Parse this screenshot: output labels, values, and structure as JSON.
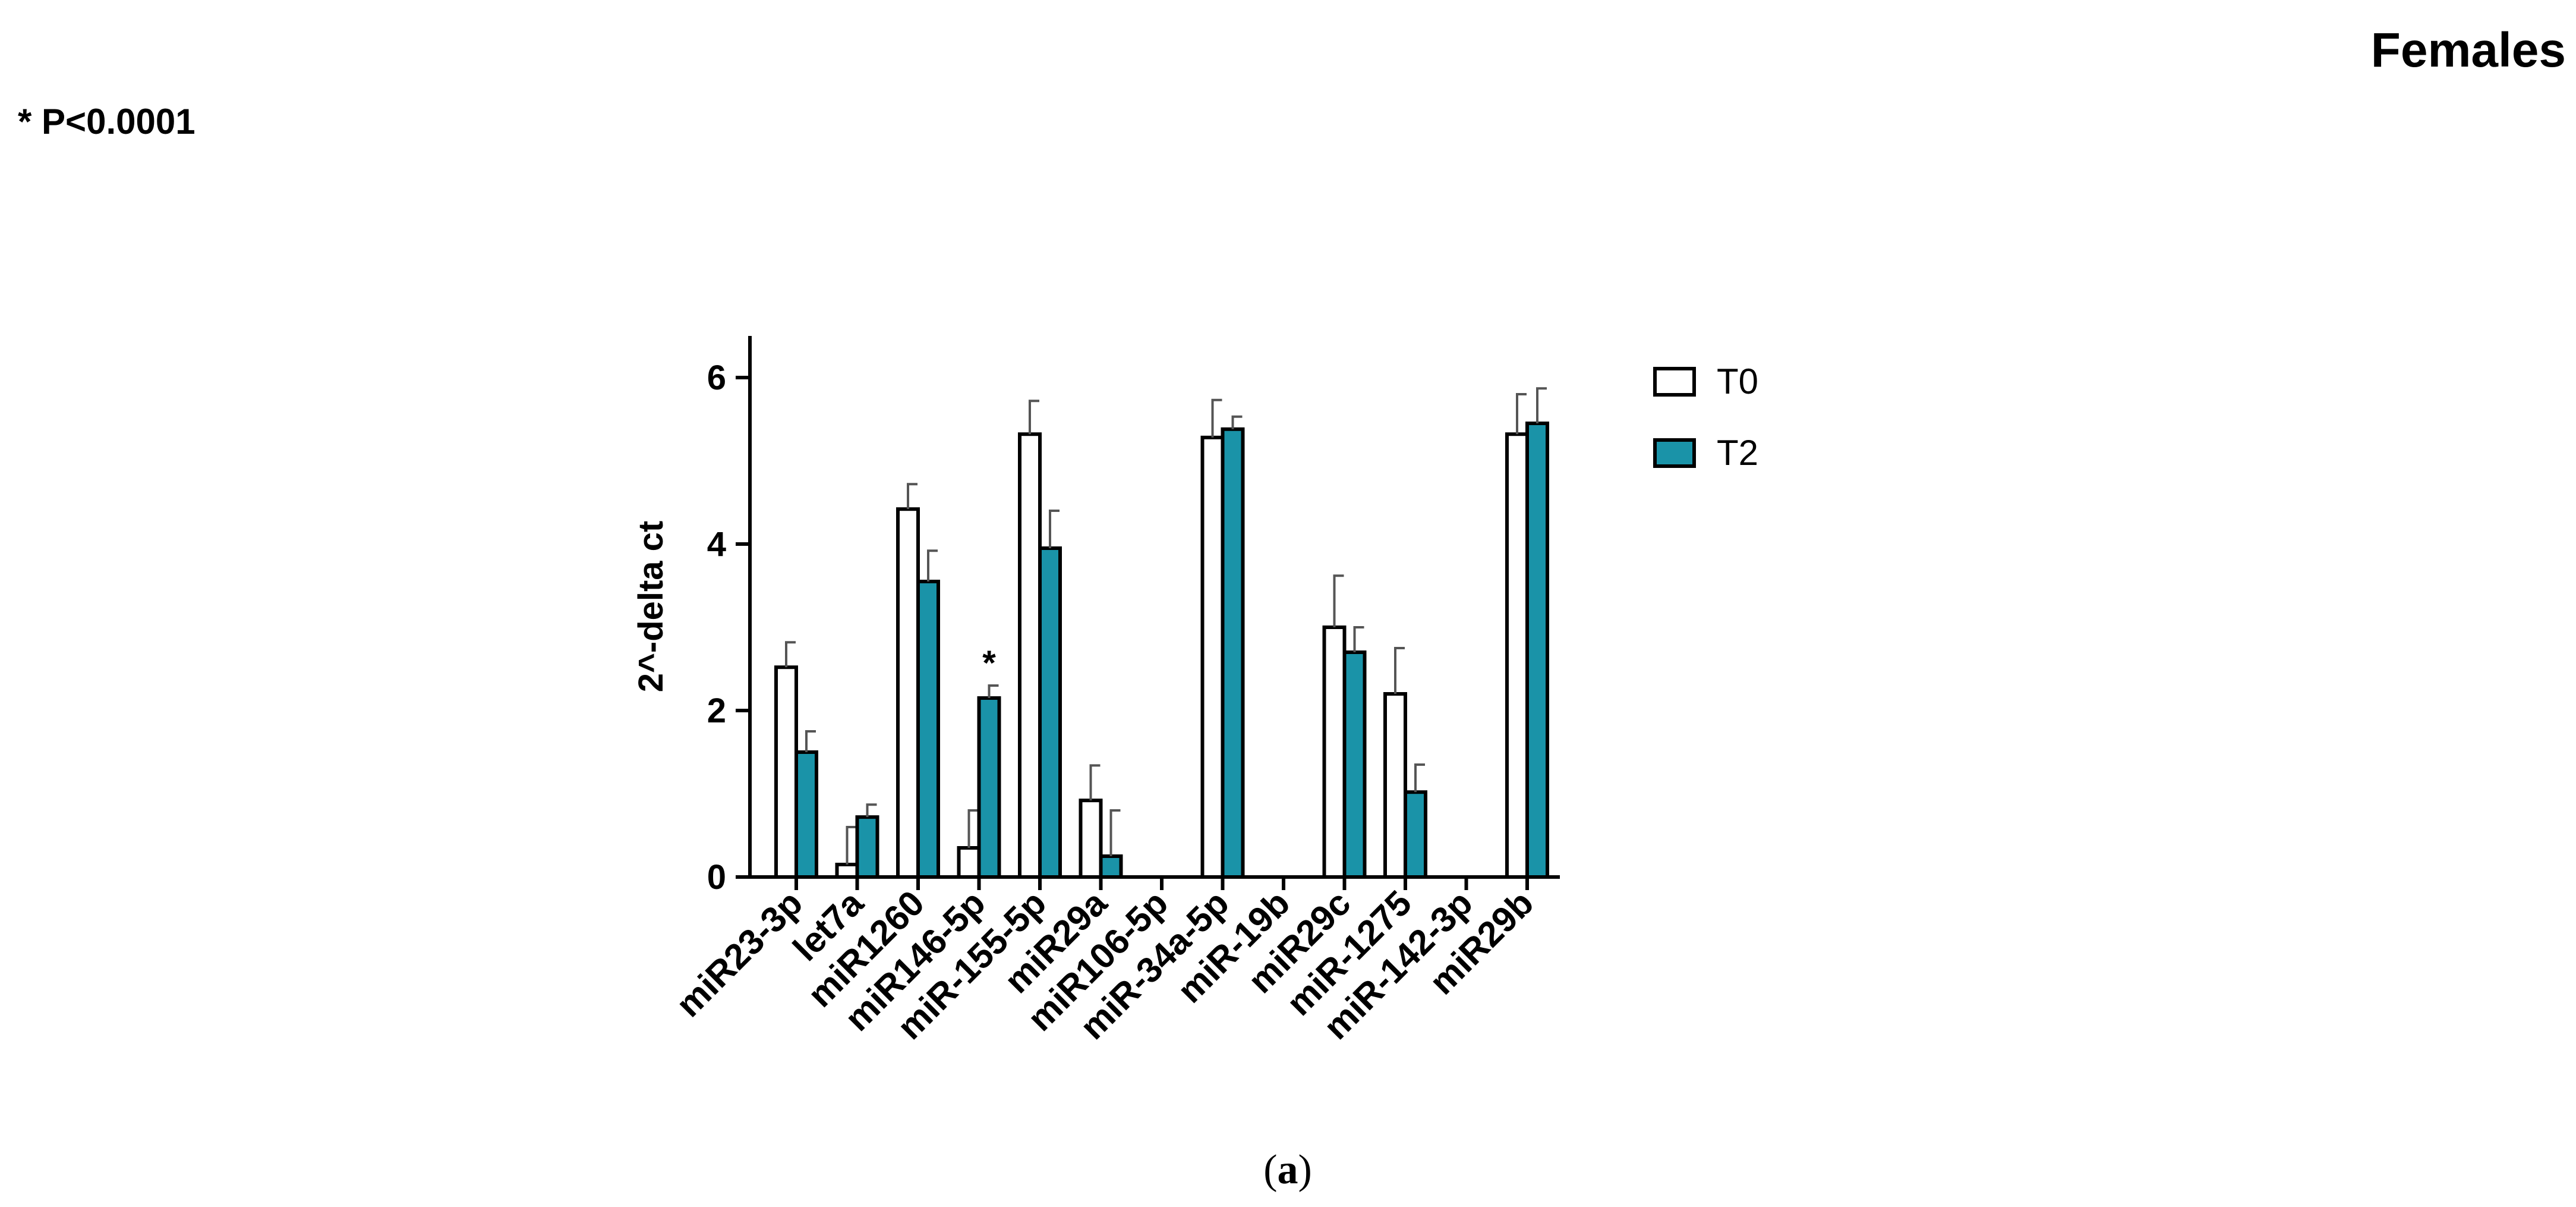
{
  "header": {
    "title": "Females",
    "significance_note": "* P<0.0001"
  },
  "caption": {
    "open": "(",
    "letter": "a",
    "close": ")"
  },
  "colors": {
    "t0_fill": "#ffffff",
    "t2_fill": "#1a93a8",
    "stroke": "#000000",
    "error_bar": "#555555"
  },
  "chart_data": {
    "type": "bar",
    "title": "Females",
    "xlabel": "",
    "ylabel": "2^-delta ct",
    "ylim": [
      0,
      6.5
    ],
    "yticks": [
      0,
      2,
      4,
      6
    ],
    "categories": [
      "miR23-3p",
      "let7a",
      "miR1260",
      "miR146-5p",
      "miR-155-5p",
      "miR29a",
      "miR106-5p",
      "miR-34a-5p",
      "miR-19b",
      "miR29c",
      "miR-1275",
      "miR-142-3p",
      "miR29b"
    ],
    "series": [
      {
        "name": "T0",
        "values": [
          2.52,
          0.15,
          4.42,
          0.35,
          5.32,
          0.92,
          0,
          5.28,
          0,
          3.0,
          2.2,
          0,
          5.32
        ],
        "errors": [
          0.3,
          0.45,
          0.3,
          0.45,
          0.4,
          0.42,
          0,
          0.45,
          0,
          0.62,
          0.55,
          0,
          0.48
        ]
      },
      {
        "name": "T2",
        "values": [
          1.5,
          0.72,
          3.55,
          2.15,
          3.95,
          0.25,
          0,
          5.38,
          0,
          2.7,
          1.02,
          0,
          5.45
        ],
        "errors": [
          0.25,
          0.15,
          0.37,
          0.15,
          0.45,
          0.55,
          0,
          0.15,
          0,
          0.3,
          0.33,
          0,
          0.42
        ]
      }
    ],
    "annotations": [
      {
        "category": "miR146-5p",
        "series": "T2",
        "text": "*"
      }
    ],
    "legend": [
      "T0",
      "T2"
    ],
    "legend_position": "right"
  }
}
